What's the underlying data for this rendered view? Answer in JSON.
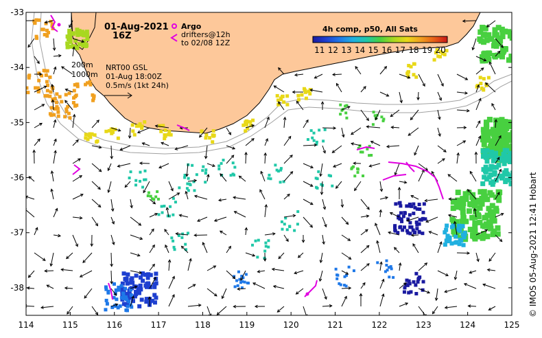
{
  "title": {
    "date": "01-Aug-2021",
    "time": "16Z"
  },
  "legend": {
    "argo_label": "Argo",
    "drifters_line1": "drifters@12h",
    "drifters_line2": "to 02/08 12Z",
    "argo_color": "#e000e0",
    "drifter_color": "#e000e0"
  },
  "isobaths": {
    "label_200": "200m",
    "label_1000": "1000m"
  },
  "product": {
    "line1": "NRT00 GSL",
    "line2": "01-Aug 18:00Z",
    "scale_label": "0.5m/s (1kt 24h)"
  },
  "colorbar": {
    "title": "4h comp, p50, All Sats",
    "ticks": [
      "11",
      "12",
      "13",
      "14",
      "15",
      "16",
      "17",
      "18",
      "19",
      "20"
    ],
    "min": 11,
    "max": 20,
    "colors": [
      "#1a1aa0",
      "#1e40d0",
      "#1e78e8",
      "#20b0e0",
      "#20c8a8",
      "#48d040",
      "#a8d820",
      "#e8d818",
      "#f0a020",
      "#e86018",
      "#c81818"
    ]
  },
  "axes": {
    "x_ticks": [
      "114",
      "115",
      "116",
      "117",
      "118",
      "119",
      "120",
      "121",
      "122",
      "123",
      "124",
      "125"
    ],
    "y_ticks": [
      "-33",
      "-34",
      "-35",
      "-36",
      "-37",
      "-38"
    ],
    "lon_min": 114,
    "lon_max": 125,
    "lat_min": -38.5,
    "lat_max": -33
  },
  "credit": "© IMOS 05-Aug-2021 12:41 Hobart",
  "colors": {
    "land": "#fdc89a",
    "coast": "#000000",
    "isobath": "#a0a0a0"
  },
  "icons": {
    "argo": "circle-marker-icon",
    "drifter": "chevron-icon"
  }
}
